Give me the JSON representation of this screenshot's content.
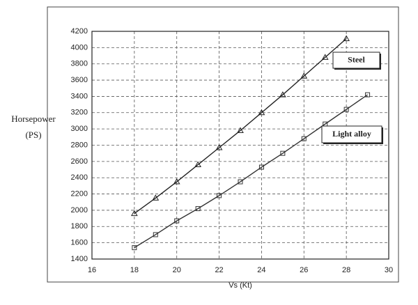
{
  "chart_data": {
    "type": "line",
    "x_label": "Vs (Kt)",
    "y_label": [
      "Horsepower",
      "(PS)"
    ],
    "x": [
      18,
      19,
      20,
      21,
      22,
      23,
      24,
      25,
      26,
      27,
      28,
      29
    ],
    "series": [
      {
        "name": "Steel",
        "color": "#222222",
        "marker": "triangle",
        "values": [
          1960,
          2150,
          2350,
          2560,
          2770,
          2980,
          3200,
          3420,
          3650,
          3880,
          4110,
          null
        ]
      },
      {
        "name": "Light alloy",
        "color": "#333333",
        "marker": "square",
        "values": [
          1540,
          1700,
          1870,
          2020,
          2180,
          2350,
          2530,
          2700,
          2880,
          3060,
          3240,
          3420
        ]
      }
    ],
    "xlim": [
      16,
      30
    ],
    "xticks": [
      16,
      18,
      20,
      22,
      24,
      26,
      28,
      30
    ],
    "ylim": [
      1400,
      4200
    ],
    "yticks": [
      1400,
      1600,
      1800,
      2000,
      2200,
      2400,
      2600,
      2800,
      3000,
      3200,
      3400,
      3600,
      3800,
      4000,
      4200
    ],
    "grid": true
  }
}
